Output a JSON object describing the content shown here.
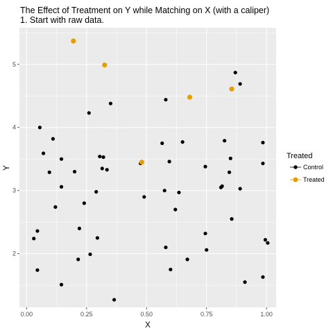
{
  "chart_data": {
    "type": "scatter",
    "title": "The Effect of Treatment on Y while Matching on X (with a caliper)",
    "subtitle": "1. Start with raw data.",
    "xlabel": "X",
    "ylabel": "Y",
    "xlim": [
      -0.03,
      1.04
    ],
    "ylim": [
      1.15,
      5.58
    ],
    "x_ticks": [
      0.0,
      0.25,
      0.5,
      0.75,
      1.0
    ],
    "x_tick_labels": [
      "0.00",
      "0.25",
      "0.50",
      "0.75",
      "1.00"
    ],
    "y_ticks": [
      2,
      3,
      4,
      5
    ],
    "y_tick_labels": [
      "2",
      "3",
      "4",
      "5"
    ],
    "grid": true,
    "legend": {
      "title": "Treated",
      "position": "right",
      "entries": [
        {
          "label": "Control",
          "color": "#000000"
        },
        {
          "label": "Treated",
          "color": "#E69F00"
        }
      ]
    },
    "series": [
      {
        "name": "Control",
        "color": "#000000",
        "points": [
          [
            0.03,
            2.24
          ],
          [
            0.045,
            2.36
          ],
          [
            0.045,
            1.74
          ],
          [
            0.055,
            4.0
          ],
          [
            0.07,
            3.59
          ],
          [
            0.095,
            3.29
          ],
          [
            0.11,
            3.82
          ],
          [
            0.12,
            2.74
          ],
          [
            0.145,
            3.5
          ],
          [
            0.145,
            3.06
          ],
          [
            0.145,
            1.51
          ],
          [
            0.2,
            3.3
          ],
          [
            0.215,
            1.91
          ],
          [
            0.22,
            2.4
          ],
          [
            0.24,
            2.8
          ],
          [
            0.26,
            4.23
          ],
          [
            0.265,
            1.99
          ],
          [
            0.29,
            2.98
          ],
          [
            0.295,
            2.25
          ],
          [
            0.305,
            3.54
          ],
          [
            0.315,
            3.35
          ],
          [
            0.32,
            3.53
          ],
          [
            0.335,
            3.33
          ],
          [
            0.35,
            4.38
          ],
          [
            0.365,
            1.27
          ],
          [
            0.475,
            3.43
          ],
          [
            0.49,
            2.9
          ],
          [
            0.565,
            3.75
          ],
          [
            0.575,
            3.0
          ],
          [
            0.58,
            4.44
          ],
          [
            0.58,
            2.1
          ],
          [
            0.595,
            3.46
          ],
          [
            0.6,
            1.75
          ],
          [
            0.62,
            2.7
          ],
          [
            0.635,
            2.97
          ],
          [
            0.65,
            3.77
          ],
          [
            0.67,
            1.91
          ],
          [
            0.745,
            3.38
          ],
          [
            0.745,
            2.32
          ],
          [
            0.75,
            2.06
          ],
          [
            0.81,
            3.05
          ],
          [
            0.815,
            3.07
          ],
          [
            0.825,
            3.79
          ],
          [
            0.845,
            3.29
          ],
          [
            0.85,
            3.51
          ],
          [
            0.855,
            2.55
          ],
          [
            0.87,
            4.87
          ],
          [
            0.89,
            4.69
          ],
          [
            0.89,
            3.03
          ],
          [
            0.91,
            1.55
          ],
          [
            0.985,
            3.76
          ],
          [
            0.985,
            3.43
          ],
          [
            0.985,
            1.63
          ],
          [
            0.995,
            2.22
          ],
          [
            1.005,
            2.17
          ]
        ]
      },
      {
        "name": "Treated",
        "color": "#E69F00",
        "points": [
          [
            0.195,
            5.37
          ],
          [
            0.325,
            4.99
          ],
          [
            0.48,
            3.45
          ],
          [
            0.68,
            4.48
          ],
          [
            0.855,
            4.61
          ]
        ]
      }
    ]
  }
}
